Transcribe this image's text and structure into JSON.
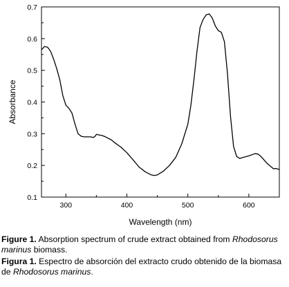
{
  "chart_data": {
    "type": "line",
    "title": "",
    "xlabel": "Wavelength (nm)",
    "ylabel": "Absorbance",
    "xlim": [
      260,
      650
    ],
    "ylim": [
      0.1,
      0.7
    ],
    "x_ticks": [
      300,
      400,
      500,
      600
    ],
    "y_ticks": [
      0.1,
      0.2,
      0.3,
      0.4,
      0.5,
      0.6,
      0.7
    ],
    "x_tick_labels": [
      "300",
      "400",
      "500",
      "600"
    ],
    "y_tick_labels": [
      "0.1",
      "0.2",
      "0.3",
      "0.4",
      "0.5",
      "0.6",
      "0.7"
    ],
    "grid": false,
    "legend": "none",
    "line_color": "#000000",
    "series": [
      {
        "x": [
          260,
          265,
          270,
          275,
          280,
          285,
          290,
          295,
          300,
          305,
          310,
          315,
          320,
          325,
          330,
          340,
          345,
          348,
          350,
          355,
          360,
          365,
          370,
          375,
          380,
          390,
          400,
          410,
          420,
          430,
          440,
          445,
          450,
          460,
          470,
          480,
          490,
          500,
          505,
          510,
          515,
          520,
          525,
          530,
          535,
          540,
          545,
          550,
          555,
          560,
          565,
          570,
          575,
          580,
          585,
          590,
          600,
          610,
          615,
          620,
          630,
          640,
          645,
          650
        ],
        "y": [
          0.565,
          0.575,
          0.573,
          0.56,
          0.535,
          0.505,
          0.47,
          0.42,
          0.39,
          0.38,
          0.365,
          0.33,
          0.3,
          0.292,
          0.29,
          0.29,
          0.288,
          0.292,
          0.298,
          0.296,
          0.294,
          0.29,
          0.285,
          0.28,
          0.272,
          0.258,
          0.24,
          0.218,
          0.195,
          0.18,
          0.17,
          0.168,
          0.17,
          0.182,
          0.2,
          0.225,
          0.268,
          0.33,
          0.39,
          0.47,
          0.56,
          0.635,
          0.66,
          0.675,
          0.678,
          0.665,
          0.64,
          0.625,
          0.62,
          0.59,
          0.49,
          0.355,
          0.26,
          0.228,
          0.222,
          0.225,
          0.23,
          0.237,
          0.236,
          0.228,
          0.206,
          0.19,
          0.19,
          0.187
        ]
      }
    ]
  },
  "captions": {
    "en_label": "Figure 1.",
    "en_text_1": " Absorption spectrum of crude extract obtained from ",
    "en_italic": "Rhodosorus marinus",
    "en_text_2": " biomass.",
    "es_label": "Figura 1.",
    "es_text_1": " Espectro de absorción del extracto crudo obtenido de la biomasa de ",
    "es_italic": "Rhodosorus marinus",
    "es_text_2": "."
  }
}
